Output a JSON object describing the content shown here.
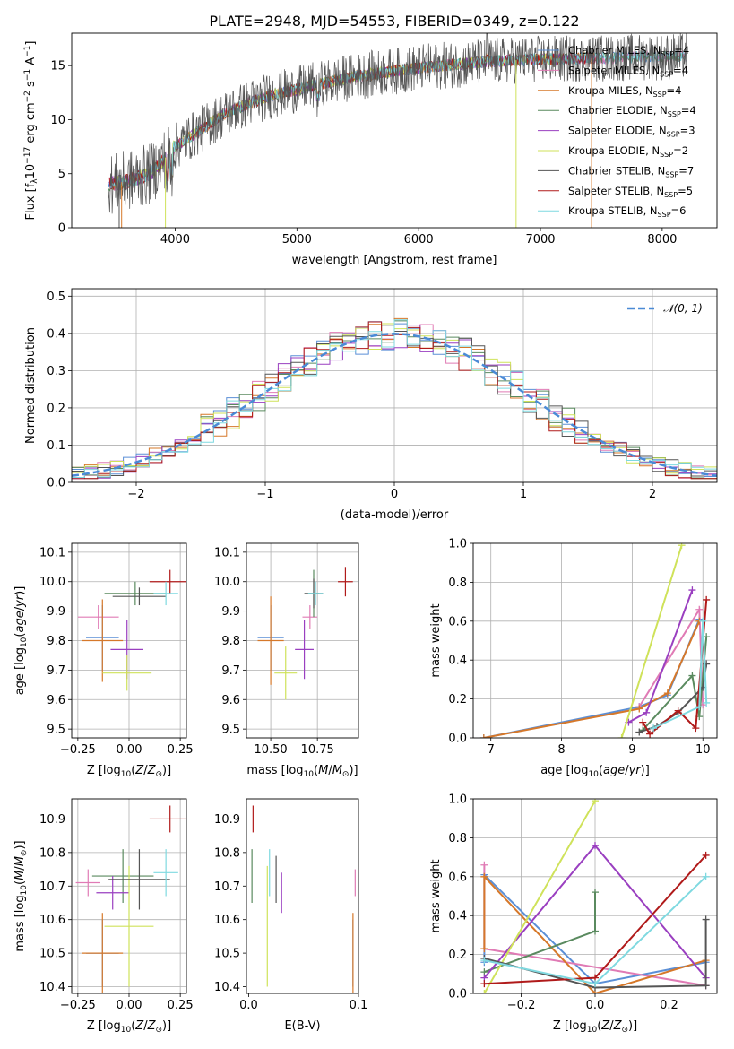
{
  "title": "PLATE=2948, MJD=54553, FIBERID=0349, z=0.122",
  "colors": {
    "chabrier_miles": "#5b8fd6",
    "salpeter_miles": "#e07bb5",
    "kroupa_miles": "#d6782a",
    "chabrier_elodie": "#5a8a5f",
    "salpeter_elodie": "#9a3fc0",
    "kroupa_elodie": "#cfe25a",
    "chabrier_stelib": "#555555",
    "salpeter_stelib": "#b01a1a",
    "kroupa_stelib": "#7fd9e0"
  },
  "chart_data": [
    {
      "type": "line",
      "name": "spectrum",
      "xlabel": "wavelength [Angstrom, rest frame]",
      "ylabel": "Flux [f_λ 10^-17 erg cm^-2 s^-1 A^-1]",
      "xlim": [
        3150,
        8450
      ],
      "ylim": [
        0,
        18
      ],
      "xticks": [
        4000,
        5000,
        6000,
        7000,
        8000
      ],
      "yticks": [
        0,
        5,
        10,
        15
      ],
      "legend_position": "top-right",
      "continuum": {
        "x": [
          3450,
          3600,
          3800,
          4000,
          4200,
          4400,
          4600,
          4800,
          5000,
          5200,
          5400,
          5600,
          5800,
          6000,
          6200,
          6400,
          6600,
          6800,
          7000,
          7200,
          7400,
          7600,
          7800,
          8000,
          8200
        ],
        "y": [
          4.0,
          4.3,
          5.0,
          7.5,
          9.0,
          10.5,
          11.5,
          12.3,
          12.8,
          13.3,
          13.8,
          14.2,
          14.5,
          14.8,
          15.0,
          15.2,
          15.4,
          15.5,
          15.6,
          15.6,
          15.7,
          15.7,
          15.8,
          15.8,
          15.9
        ]
      },
      "series": [
        {
          "name": "Chabrier MILES, N_SSP=4",
          "label_main": "Chabrier MILES, N",
          "label_sub": "SSP",
          "label_tail": "=4",
          "color_key": "chabrier_miles"
        },
        {
          "name": "Salpeter MILES, N_SSP=4",
          "label_main": "Salpeter MILES, N",
          "label_sub": "SSP",
          "label_tail": "=4",
          "color_key": "salpeter_miles"
        },
        {
          "name": "Kroupa MILES, N_SSP=4",
          "label_main": "Kroupa MILES, N",
          "label_sub": "SSP",
          "label_tail": "=4",
          "color_key": "kroupa_miles"
        },
        {
          "name": "Chabrier ELODIE, N_SSP=4",
          "label_main": "Chabrier ELODIE, N",
          "label_sub": "SSP",
          "label_tail": "=4",
          "color_key": "chabrier_elodie"
        },
        {
          "name": "Salpeter ELODIE, N_SSP=3",
          "label_main": "Salpeter ELODIE, N",
          "label_sub": "SSP",
          "label_tail": "=3",
          "color_key": "salpeter_elodie"
        },
        {
          "name": "Kroupa ELODIE, N_SSP=2",
          "label_main": "Kroupa ELODIE, N",
          "label_sub": "SSP",
          "label_tail": "=2",
          "color_key": "kroupa_elodie"
        },
        {
          "name": "Chabrier STELIB, N_SSP=7",
          "label_main": "Chabrier STELIB, N",
          "label_sub": "SSP",
          "label_tail": "=7",
          "color_key": "chabrier_stelib"
        },
        {
          "name": "Salpeter STELIB, N_SSP=5",
          "label_main": "Salpeter STELIB, N",
          "label_sub": "SSP",
          "label_tail": "=5",
          "color_key": "salpeter_stelib"
        },
        {
          "name": "Kroupa STELIB, N_SSP=6",
          "label_main": "Kroupa STELIB, N",
          "label_sub": "SSP",
          "label_tail": "=6",
          "color_key": "kroupa_stelib"
        }
      ]
    },
    {
      "type": "line",
      "name": "residual-histogram",
      "xlabel": "(data-model)/error",
      "ylabel": "Normed distribution",
      "xlim": [
        -2.5,
        2.5
      ],
      "ylim": [
        0,
        0.52
      ],
      "xticks": [
        -2,
        -1,
        0,
        1,
        2
      ],
      "yticks": [
        0.0,
        0.1,
        0.2,
        0.3,
        0.4,
        0.5
      ],
      "grid": true,
      "legend_position": "top-right",
      "reference_curve": {
        "name": "N(0,1)",
        "label": "𝒩(0, 1)",
        "color": "#4a8ad6"
      },
      "bin_width": 0.1
    },
    {
      "type": "scatter",
      "name": "age-vs-Z",
      "xlabel": "Z [log10(Z/Z☉)]",
      "ylabel": "age [log10(age/yr)]",
      "xlim": [
        -0.28,
        0.28
      ],
      "ylim": [
        9.47,
        10.13
      ],
      "xticks": [
        -0.25,
        0.0,
        0.25
      ],
      "yticks": [
        9.5,
        9.6,
        9.7,
        9.8,
        9.9,
        10.0,
        10.1
      ],
      "grid": true,
      "points": [
        {
          "color_key": "chabrier_miles",
          "x": -0.13,
          "y": 9.81,
          "xerr": 0.08,
          "yerr": 0.11
        },
        {
          "color_key": "salpeter_miles",
          "x": -0.15,
          "y": 9.88,
          "xerr": 0.1,
          "yerr": 0.04
        },
        {
          "color_key": "kroupa_miles",
          "x": -0.13,
          "y": 9.8,
          "xerr": 0.1,
          "yerr": 0.14
        },
        {
          "color_key": "chabrier_elodie",
          "x": 0.03,
          "y": 9.96,
          "xerr": 0.15,
          "yerr": 0.04
        },
        {
          "color_key": "salpeter_elodie",
          "x": -0.01,
          "y": 9.77,
          "xerr": 0.08,
          "yerr": 0.1
        },
        {
          "color_key": "kroupa_elodie",
          "x": -0.01,
          "y": 9.69,
          "xerr": 0.12,
          "yerr": 0.06
        },
        {
          "color_key": "chabrier_stelib",
          "x": 0.05,
          "y": 9.95,
          "xerr": 0.13,
          "yerr": 0.03
        },
        {
          "color_key": "salpeter_stelib",
          "x": 0.2,
          "y": 10.0,
          "xerr": 0.1,
          "yerr": 0.04
        },
        {
          "color_key": "kroupa_stelib",
          "x": 0.18,
          "y": 9.96,
          "xerr": 0.06,
          "yerr": 0.04
        }
      ]
    },
    {
      "type": "scatter",
      "name": "age-vs-mass",
      "xlabel": "mass [log10(M/M☉)]",
      "ylabel": "",
      "xlim": [
        10.37,
        10.97
      ],
      "ylim": [
        9.47,
        10.13
      ],
      "xticks": [
        10.5,
        10.75
      ],
      "xticklabels": [
        "10.50",
        "10.75"
      ],
      "yticks": [
        9.5,
        9.6,
        9.7,
        9.8,
        9.9,
        10.0,
        10.1
      ],
      "grid": true,
      "points": [
        {
          "color_key": "chabrier_miles",
          "x": 10.5,
          "y": 9.81,
          "xerr": 0.07,
          "yerr": 0.11
        },
        {
          "color_key": "salpeter_miles",
          "x": 10.71,
          "y": 9.88,
          "xerr": 0.04,
          "yerr": 0.04
        },
        {
          "color_key": "kroupa_miles",
          "x": 10.5,
          "y": 9.8,
          "xerr": 0.07,
          "yerr": 0.15
        },
        {
          "color_key": "chabrier_elodie",
          "x": 10.73,
          "y": 9.96,
          "xerr": 0.03,
          "yerr": 0.08
        },
        {
          "color_key": "salpeter_elodie",
          "x": 10.68,
          "y": 9.77,
          "xerr": 0.05,
          "yerr": 0.1
        },
        {
          "color_key": "kroupa_elodie",
          "x": 10.58,
          "y": 9.69,
          "xerr": 0.06,
          "yerr": 0.09
        },
        {
          "color_key": "chabrier_stelib",
          "x": 10.73,
          "y": 9.96,
          "xerr": 0.05,
          "yerr": 0.05
        },
        {
          "color_key": "salpeter_stelib",
          "x": 10.9,
          "y": 10.0,
          "xerr": 0.04,
          "yerr": 0.05
        },
        {
          "color_key": "kroupa_stelib",
          "x": 10.74,
          "y": 9.96,
          "xerr": 0.04,
          "yerr": 0.04
        }
      ]
    },
    {
      "type": "line",
      "name": "mass-weight-vs-age",
      "xlabel": "age [log10(age/yr)]",
      "ylabel": "mass weight",
      "xlim": [
        6.75,
        10.2
      ],
      "ylim": [
        0,
        1.0
      ],
      "xticks": [
        7,
        8,
        9,
        10
      ],
      "yticks": [
        0.0,
        0.2,
        0.4,
        0.6,
        0.8,
        1.0
      ],
      "grid": true,
      "series": [
        {
          "color_key": "chabrier_miles",
          "x": [
            6.9,
            9.1,
            9.5,
            9.95
          ],
          "y": [
            0.0,
            0.16,
            0.22,
            0.61
          ]
        },
        {
          "color_key": "salpeter_miles",
          "x": [
            9.1,
            9.95,
            10.0
          ],
          "y": [
            0.16,
            0.66,
            0.17
          ]
        },
        {
          "color_key": "kroupa_miles",
          "x": [
            6.9,
            9.1,
            9.5,
            9.95
          ],
          "y": [
            0.0,
            0.15,
            0.23,
            0.6
          ]
        },
        {
          "color_key": "chabrier_elodie",
          "x": [
            9.15,
            9.85,
            9.95,
            10.05
          ],
          "y": [
            0.04,
            0.32,
            0.11,
            0.52
          ]
        },
        {
          "color_key": "salpeter_elodie",
          "x": [
            8.95,
            9.2,
            9.85
          ],
          "y": [
            0.08,
            0.13,
            0.76
          ]
        },
        {
          "color_key": "kroupa_elodie",
          "x": [
            8.85,
            9.7
          ],
          "y": [
            0.0,
            0.99
          ]
        },
        {
          "color_key": "chabrier_stelib",
          "x": [
            9.1,
            9.35,
            9.65,
            10.0,
            10.05
          ],
          "y": [
            0.03,
            0.06,
            0.13,
            0.26,
            0.38
          ]
        },
        {
          "color_key": "salpeter_stelib",
          "x": [
            9.15,
            9.25,
            9.65,
            9.9,
            10.05
          ],
          "y": [
            0.08,
            0.02,
            0.14,
            0.05,
            0.71
          ]
        },
        {
          "color_key": "kroupa_stelib",
          "x": [
            9.3,
            9.95,
            10.0,
            10.05
          ],
          "y": [
            0.05,
            0.16,
            0.6,
            0.18
          ]
        }
      ]
    },
    {
      "type": "scatter",
      "name": "mass-vs-Z",
      "xlabel": "Z [log10(Z/Z☉)]",
      "ylabel": "mass [log10(M/M☉)]",
      "xlim": [
        -0.28,
        0.28
      ],
      "ylim": [
        10.38,
        10.96
      ],
      "xticks": [
        -0.25,
        0.0,
        0.25
      ],
      "yticks": [
        10.4,
        10.5,
        10.6,
        10.7,
        10.8,
        10.9
      ],
      "grid": true,
      "points": [
        {
          "color_key": "chabrier_miles",
          "x": -0.13,
          "y": 10.5,
          "xerr": 0.08,
          "yerr": 0.1
        },
        {
          "color_key": "salpeter_miles",
          "x": -0.2,
          "y": 10.71,
          "xerr": 0.06,
          "yerr": 0.04
        },
        {
          "color_key": "kroupa_miles",
          "x": -0.13,
          "y": 10.5,
          "xerr": 0.1,
          "yerr": 0.12
        },
        {
          "color_key": "chabrier_elodie",
          "x": -0.03,
          "y": 10.73,
          "xerr": 0.15,
          "yerr": 0.08
        },
        {
          "color_key": "salpeter_elodie",
          "x": -0.08,
          "y": 10.68,
          "xerr": 0.08,
          "yerr": 0.05
        },
        {
          "color_key": "kroupa_elodie",
          "x": 0.0,
          "y": 10.58,
          "xerr": 0.12,
          "yerr": 0.18
        },
        {
          "color_key": "chabrier_stelib",
          "x": 0.05,
          "y": 10.72,
          "xerr": 0.15,
          "yerr": 0.09
        },
        {
          "color_key": "salpeter_stelib",
          "x": 0.2,
          "y": 10.9,
          "xerr": 0.1,
          "yerr": 0.04
        },
        {
          "color_key": "kroupa_stelib",
          "x": 0.18,
          "y": 10.74,
          "xerr": 0.06,
          "yerr": 0.07
        }
      ]
    },
    {
      "type": "scatter",
      "name": "mass-vs-EBV",
      "xlabel": "E(B-V)",
      "ylabel": "",
      "xlim": [
        -0.002,
        0.1
      ],
      "ylim": [
        10.38,
        10.96
      ],
      "xticks": [
        0.0,
        0.1
      ],
      "yticks": [
        10.4,
        10.5,
        10.6,
        10.7,
        10.8,
        10.9
      ],
      "grid": false,
      "points": [
        {
          "color_key": "chabrier_miles",
          "x": 0.095,
          "y": 10.5,
          "yerr": 0.1
        },
        {
          "color_key": "salpeter_miles",
          "x": 0.097,
          "y": 10.71,
          "yerr": 0.04
        },
        {
          "color_key": "kroupa_miles",
          "x": 0.095,
          "y": 10.5,
          "yerr": 0.12
        },
        {
          "color_key": "chabrier_elodie",
          "x": 0.003,
          "y": 10.73,
          "yerr": 0.08
        },
        {
          "color_key": "salpeter_elodie",
          "x": 0.03,
          "y": 10.68,
          "yerr": 0.06
        },
        {
          "color_key": "kroupa_elodie",
          "x": 0.017,
          "y": 10.58,
          "yerr": 0.18
        },
        {
          "color_key": "chabrier_stelib",
          "x": 0.025,
          "y": 10.72,
          "yerr": 0.07
        },
        {
          "color_key": "salpeter_stelib",
          "x": 0.004,
          "y": 10.9,
          "yerr": 0.04
        },
        {
          "color_key": "kroupa_stelib",
          "x": 0.019,
          "y": 10.74,
          "yerr": 0.07
        }
      ]
    },
    {
      "type": "line",
      "name": "mass-weight-vs-Z",
      "xlabel": "Z [log10(Z/Z☉)]",
      "ylabel": "mass weight",
      "xlim": [
        -0.33,
        0.33
      ],
      "ylim": [
        0,
        1.0
      ],
      "xticks": [
        -0.2,
        0.0,
        0.2
      ],
      "yticks": [
        0.0,
        0.2,
        0.4,
        0.6,
        0.8,
        1.0
      ],
      "grid": true,
      "series": [
        {
          "color_key": "chabrier_miles",
          "x": [
            -0.3,
            -0.3,
            0.0,
            0.3
          ],
          "y": [
            0.16,
            0.61,
            0.05,
            0.16
          ]
        },
        {
          "color_key": "salpeter_miles",
          "x": [
            -0.3,
            -0.3,
            0.3
          ],
          "y": [
            0.66,
            0.23,
            0.04
          ]
        },
        {
          "color_key": "kroupa_miles",
          "x": [
            -0.3,
            -0.3,
            0.0,
            0.3
          ],
          "y": [
            0.23,
            0.6,
            0.0,
            0.17
          ]
        },
        {
          "color_key": "chabrier_elodie",
          "x": [
            -0.3,
            0.0,
            0.0
          ],
          "y": [
            0.11,
            0.32,
            0.52
          ]
        },
        {
          "color_key": "salpeter_elodie",
          "x": [
            -0.3,
            0.0,
            0.3
          ],
          "y": [
            0.08,
            0.76,
            0.08
          ]
        },
        {
          "color_key": "kroupa_elodie",
          "x": [
            -0.3,
            0.0
          ],
          "y": [
            0.0,
            0.99
          ]
        },
        {
          "color_key": "chabrier_stelib",
          "x": [
            -0.3,
            0.0,
            0.3,
            0.3
          ],
          "y": [
            0.18,
            0.03,
            0.04,
            0.38
          ]
        },
        {
          "color_key": "salpeter_stelib",
          "x": [
            -0.3,
            0.0,
            0.3
          ],
          "y": [
            0.05,
            0.08,
            0.71
          ]
        },
        {
          "color_key": "kroupa_stelib",
          "x": [
            -0.3,
            0.0,
            0.3
          ],
          "y": [
            0.17,
            0.05,
            0.6
          ]
        }
      ]
    }
  ]
}
